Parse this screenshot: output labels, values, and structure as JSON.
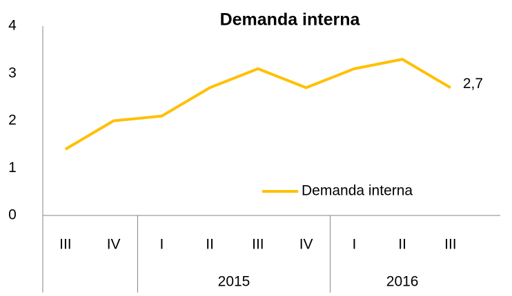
{
  "chart_data": {
    "type": "line",
    "title": "Demanda interna",
    "categories": [
      "III",
      "IV",
      "I",
      "II",
      "III",
      "IV",
      "I",
      "II",
      "III"
    ],
    "category_years": [
      null,
      null,
      "2015",
      "2015",
      "2015",
      "2015",
      "2016",
      "2016",
      "2016"
    ],
    "series": [
      {
        "name": "Demanda interna",
        "color": "#FFC000",
        "values": [
          1.4,
          2.0,
          2.1,
          2.7,
          3.1,
          2.7,
          3.1,
          3.3,
          2.7
        ],
        "value_labels": [
          null,
          null,
          null,
          null,
          null,
          null,
          null,
          null,
          "2,7"
        ]
      }
    ],
    "ylim": [
      0,
      4
    ],
    "yticks": [
      0,
      1,
      2,
      3,
      4
    ],
    "grid": false,
    "legend": "right"
  }
}
